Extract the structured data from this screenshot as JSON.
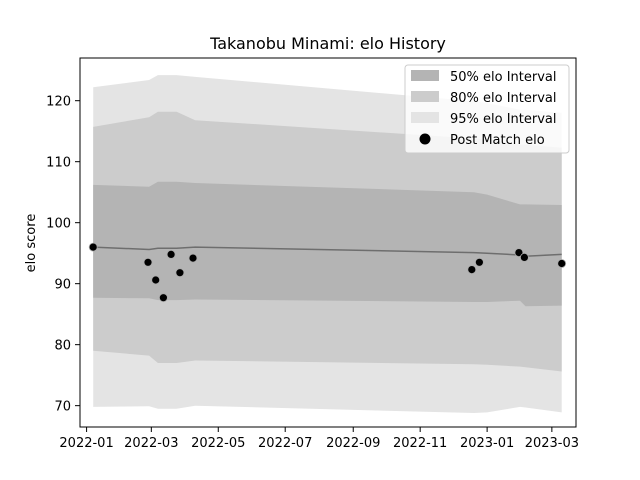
{
  "chart_data": {
    "type": "area",
    "title": "Takanobu Minami: elo History",
    "xlabel": "",
    "ylabel": "elo score",
    "x_ticks": [
      "2022-01",
      "2022-03",
      "2022-05",
      "2022-07",
      "2022-09",
      "2022-11",
      "2023-01",
      "2023-03"
    ],
    "y_ticks": [
      70,
      80,
      90,
      100,
      110,
      120
    ],
    "xlim": [
      "2021-12-26",
      "2023-03-23"
    ],
    "ylim": [
      66.5,
      127
    ],
    "legend_position": "top-right",
    "legend": [
      "50% elo Interval",
      "80% elo Interval",
      "95% elo Interval",
      "Post Match elo"
    ],
    "colors": {
      "band50": "#b4b4b4",
      "band80": "#cccccc",
      "band95": "#e4e4e4",
      "line": "#6e6e6e",
      "point": "#000000"
    },
    "bands": [
      {
        "date": "2022-01-07",
        "mean": 96.0,
        "lo95": 69.8,
        "lo80": 79.0,
        "lo50": 87.7,
        "hi50": 106.2,
        "hi80": 115.7,
        "hi95": 122.2
      },
      {
        "date": "2022-02-27",
        "mean": 95.6,
        "lo95": 69.9,
        "lo80": 78.2,
        "lo50": 87.6,
        "hi50": 105.9,
        "hi80": 117.3,
        "hi95": 123.4
      },
      {
        "date": "2022-03-07",
        "mean": 95.8,
        "lo95": 69.5,
        "lo80": 77.0,
        "lo50": 87.3,
        "hi50": 106.7,
        "hi80": 118.2,
        "hi95": 124.2
      },
      {
        "date": "2022-03-24",
        "mean": 95.8,
        "lo95": 69.5,
        "lo80": 77.0,
        "lo50": 87.3,
        "hi50": 106.7,
        "hi80": 118.2,
        "hi95": 124.2
      },
      {
        "date": "2022-04-10",
        "mean": 96.0,
        "lo95": 70.0,
        "lo80": 77.4,
        "lo50": 87.4,
        "hi50": 106.5,
        "hi80": 116.8,
        "hi95": 123.9
      },
      {
        "date": "2022-12-20",
        "mean": 95.1,
        "lo95": 68.8,
        "lo80": 76.8,
        "lo50": 87.0,
        "hi50": 105.0,
        "hi80": 113.8,
        "hi95": 119.9
      },
      {
        "date": "2023-01-01",
        "mean": 95.0,
        "lo95": 68.9,
        "lo80": 76.7,
        "lo50": 87.0,
        "hi50": 104.6,
        "hi80": 113.7,
        "hi95": 119.6
      },
      {
        "date": "2023-01-31",
        "mean": 94.7,
        "lo95": 69.8,
        "lo80": 76.4,
        "lo50": 87.2,
        "hi50": 103.0,
        "hi80": 112.8,
        "hi95": 118.5
      },
      {
        "date": "2023-02-05",
        "mean": 94.5,
        "lo95": 69.7,
        "lo80": 76.3,
        "lo50": 86.3,
        "hi50": 103.0,
        "hi80": 112.8,
        "hi95": 118.5
      },
      {
        "date": "2023-03-10",
        "mean": 94.8,
        "lo95": 68.9,
        "lo80": 75.6,
        "lo50": 86.4,
        "hi50": 102.9,
        "hi80": 112.3,
        "hi95": 118.0
      }
    ],
    "points": [
      {
        "date": "2022-01-07",
        "elo": 96.0
      },
      {
        "date": "2022-02-26",
        "elo": 93.5
      },
      {
        "date": "2022-03-05",
        "elo": 90.6
      },
      {
        "date": "2022-03-12",
        "elo": 87.7
      },
      {
        "date": "2022-03-19",
        "elo": 94.8
      },
      {
        "date": "2022-03-27",
        "elo": 91.8
      },
      {
        "date": "2022-04-08",
        "elo": 94.2
      },
      {
        "date": "2022-12-18",
        "elo": 92.3
      },
      {
        "date": "2022-12-25",
        "elo": 93.5
      },
      {
        "date": "2023-01-30",
        "elo": 95.1
      },
      {
        "date": "2023-02-04",
        "elo": 94.3
      },
      {
        "date": "2023-03-10",
        "elo": 93.3
      }
    ]
  }
}
